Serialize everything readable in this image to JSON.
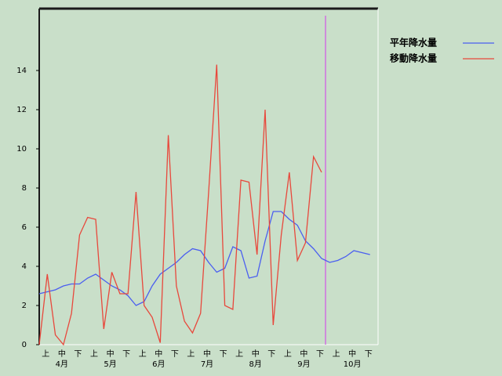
{
  "chart_data": {
    "type": "line",
    "categories": [
      null,
      "上",
      null,
      "中",
      null,
      "下",
      null,
      "上",
      null,
      "中",
      null,
      "下",
      null,
      "上",
      null,
      "中",
      null,
      "下",
      null,
      "上",
      null,
      "中",
      null,
      "下",
      null,
      "上",
      null,
      "中",
      null,
      "下",
      null,
      "上",
      null,
      "中",
      null,
      "下",
      null,
      "上",
      null,
      "中",
      null,
      "下"
    ],
    "months": [
      "4月",
      "5月",
      "6月",
      "7月",
      "8月",
      "9月",
      "10月"
    ],
    "series": [
      {
        "name": "平年降水量",
        "color": "#4a5ef0",
        "values": [
          2.6,
          2.7,
          2.8,
          3.0,
          3.1,
          3.1,
          3.4,
          3.6,
          3.3,
          3.0,
          2.8,
          2.5,
          2.0,
          2.2,
          3.0,
          3.6,
          3.9,
          4.2,
          4.6,
          4.9,
          4.8,
          4.2,
          3.7,
          3.9,
          5.0,
          4.8,
          3.4,
          3.5,
          5.3,
          6.8,
          6.8,
          6.4,
          6.1,
          5.3,
          4.9,
          4.4,
          4.2,
          4.3,
          4.5,
          4.8,
          4.7,
          4.6
        ]
      },
      {
        "name": "移動降水量",
        "color": "#e8483c",
        "values": [
          0,
          3.6,
          0.5,
          0,
          1.6,
          5.6,
          6.5,
          6.4,
          0.8,
          3.7,
          2.6,
          2.6,
          7.8,
          2.0,
          1.4,
          0.1,
          10.7,
          3.0,
          1.2,
          0.6,
          1.6,
          7.8,
          14.3,
          2.0,
          1.8,
          8.4,
          8.3,
          4.6,
          12.0,
          1.0,
          5.6,
          8.8,
          4.3,
          5.2,
          9.6,
          8.8,
          null,
          null,
          null,
          null,
          null,
          null
        ]
      }
    ],
    "ylim": [
      0,
      17.2
    ],
    "yticks": [
      0,
      2,
      4,
      6,
      8,
      10,
      12,
      14
    ]
  }
}
